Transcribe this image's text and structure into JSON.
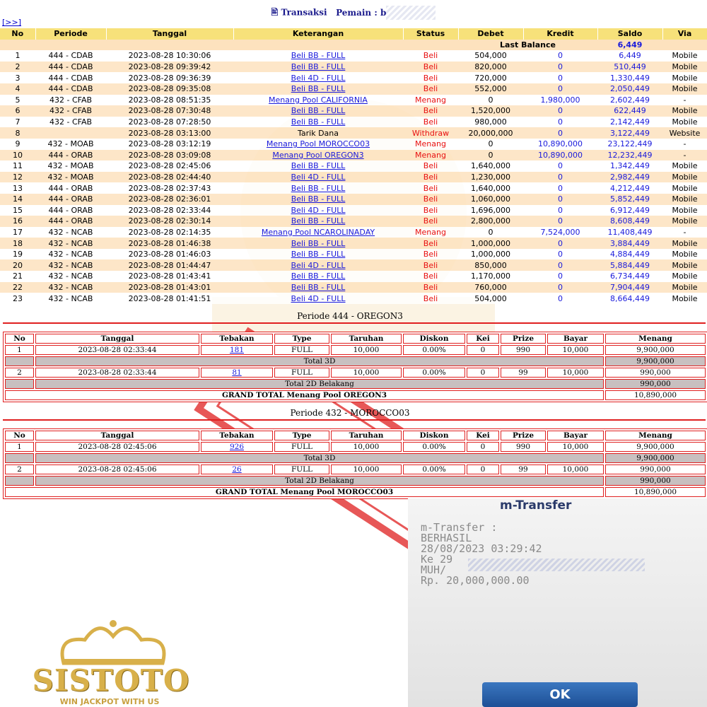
{
  "header": {
    "link": "[>>]",
    "title": "Transaksi",
    "player_label": "Pemain : b"
  },
  "transactions": {
    "columns": [
      "No",
      "Periode",
      "Tanggal",
      "Keterangan",
      "Status",
      "Debet",
      "Kredit",
      "Saldo",
      "Via"
    ],
    "last_balance_label": "Last Balance",
    "last_balance": "6,449",
    "rows": [
      [
        "1",
        "444 - CDAB",
        "2023-08-28 10:30:06",
        "Beli BB - FULL",
        "Beli",
        "504,000",
        "0",
        "6,449",
        "Mobile"
      ],
      [
        "2",
        "444 - CDAB",
        "2023-08-28 09:39:42",
        "Beli BB - FULL",
        "Beli",
        "820,000",
        "0",
        "510,449",
        "Mobile"
      ],
      [
        "3",
        "444 - CDAB",
        "2023-08-28 09:36:39",
        "Beli 4D - FULL",
        "Beli",
        "720,000",
        "0",
        "1,330,449",
        "Mobile"
      ],
      [
        "4",
        "444 - CDAB",
        "2023-08-28 09:35:08",
        "Beli BB - FULL",
        "Beli",
        "552,000",
        "0",
        "2,050,449",
        "Mobile"
      ],
      [
        "5",
        "432 - CFAB",
        "2023-08-28 08:51:35",
        "Menang Pool CALIFORNIA",
        "Menang",
        "0",
        "1,980,000",
        "2,602,449",
        "-"
      ],
      [
        "6",
        "432 - CFAB",
        "2023-08-28 07:30:48",
        "Beli BB - FULL",
        "Beli",
        "1,520,000",
        "0",
        "622,449",
        "Mobile"
      ],
      [
        "7",
        "432 - CFAB",
        "2023-08-28 07:28:50",
        "Beli BB - FULL",
        "Beli",
        "980,000",
        "0",
        "2,142,449",
        "Mobile"
      ],
      [
        "8",
        "",
        "2023-08-28 03:13:00",
        "Tarik Dana",
        "Withdraw",
        "20,000,000",
        "0",
        "3,122,449",
        "Website"
      ],
      [
        "9",
        "432 - MOAB",
        "2023-08-28 03:12:19",
        "Menang Pool MOROCCO03",
        "Menang",
        "0",
        "10,890,000",
        "23,122,449",
        "-"
      ],
      [
        "10",
        "444 - ORAB",
        "2023-08-28 03:09:08",
        "Menang Pool OREGON3",
        "Menang",
        "0",
        "10,890,000",
        "12,232,449",
        "-"
      ],
      [
        "11",
        "432 - MOAB",
        "2023-08-28 02:45:06",
        "Beli BB - FULL",
        "Beli",
        "1,640,000",
        "0",
        "1,342,449",
        "Mobile"
      ],
      [
        "12",
        "432 - MOAB",
        "2023-08-28 02:44:40",
        "Beli 4D - FULL",
        "Beli",
        "1,230,000",
        "0",
        "2,982,449",
        "Mobile"
      ],
      [
        "13",
        "444 - ORAB",
        "2023-08-28 02:37:43",
        "Beli BB - FULL",
        "Beli",
        "1,640,000",
        "0",
        "4,212,449",
        "Mobile"
      ],
      [
        "14",
        "444 - ORAB",
        "2023-08-28 02:36:01",
        "Beli BB - FULL",
        "Beli",
        "1,060,000",
        "0",
        "5,852,449",
        "Mobile"
      ],
      [
        "15",
        "444 - ORAB",
        "2023-08-28 02:33:44",
        "Beli 4D - FULL",
        "Beli",
        "1,696,000",
        "0",
        "6,912,449",
        "Mobile"
      ],
      [
        "16",
        "444 - ORAB",
        "2023-08-28 02:30:14",
        "Beli BB - FULL",
        "Beli",
        "2,800,000",
        "0",
        "8,608,449",
        "Mobile"
      ],
      [
        "17",
        "432 - NCAB",
        "2023-08-28 02:14:35",
        "Menang Pool NCAROLINADAY",
        "Menang",
        "0",
        "7,524,000",
        "11,408,449",
        "-"
      ],
      [
        "18",
        "432 - NCAB",
        "2023-08-28 01:46:38",
        "Beli BB - FULL",
        "Beli",
        "1,000,000",
        "0",
        "3,884,449",
        "Mobile"
      ],
      [
        "19",
        "432 - NCAB",
        "2023-08-28 01:46:03",
        "Beli BB - FULL",
        "Beli",
        "1,000,000",
        "0",
        "4,884,449",
        "Mobile"
      ],
      [
        "20",
        "432 - NCAB",
        "2023-08-28 01:44:47",
        "Beli 4D - FULL",
        "Beli",
        "850,000",
        "0",
        "5,884,449",
        "Mobile"
      ],
      [
        "21",
        "432 - NCAB",
        "2023-08-28 01:43:41",
        "Beli BB - FULL",
        "Beli",
        "1,170,000",
        "0",
        "6,734,449",
        "Mobile"
      ],
      [
        "22",
        "432 - NCAB",
        "2023-08-28 01:43:01",
        "Beli BB - FULL",
        "Beli",
        "760,000",
        "0",
        "7,904,449",
        "Mobile"
      ],
      [
        "23",
        "432 - NCAB",
        "2023-08-28 01:41:51",
        "Beli 4D - FULL",
        "Beli",
        "504,000",
        "0",
        "8,664,449",
        "Mobile"
      ]
    ]
  },
  "details": [
    {
      "title": "Periode 444 - OREGON3",
      "columns": [
        "No",
        "Tanggal",
        "Tebakan",
        "Type",
        "Taruhan",
        "Diskon",
        "Kei",
        "Prize",
        "Bayar",
        "Menang"
      ],
      "entries": [
        {
          "row": [
            "1",
            "2023-08-28 02:33:44",
            "181",
            "FULL",
            "10,000",
            "0.00%",
            "0",
            "990",
            "10,000",
            "9,900,000"
          ],
          "total_label": "Total 3D",
          "total": "9,900,000"
        },
        {
          "row": [
            "2",
            "2023-08-28 02:33:44",
            "81",
            "FULL",
            "10,000",
            "0.00%",
            "0",
            "99",
            "10,000",
            "990,000"
          ],
          "total_label": "Total 2D Belakang",
          "total": "990,000"
        }
      ],
      "grand_total_label": "GRAND TOTAL  Menang Pool OREGON3",
      "grand_total": "10,890,000"
    },
    {
      "title": "Periode 432 - MOROCCO03",
      "columns": [
        "No",
        "Tanggal",
        "Tebakan",
        "Type",
        "Taruhan",
        "Diskon",
        "Kei",
        "Prize",
        "Bayar",
        "Menang"
      ],
      "entries": [
        {
          "row": [
            "1",
            "2023-08-28 02:45:06",
            "926",
            "FULL",
            "10,000",
            "0.00%",
            "0",
            "990",
            "10,000",
            "9,900,000"
          ],
          "total_label": "Total 3D",
          "total": "9,900,000"
        },
        {
          "row": [
            "2",
            "2023-08-28 02:45:06",
            "26",
            "FULL",
            "10,000",
            "0.00%",
            "0",
            "99",
            "10,000",
            "990,000"
          ],
          "total_label": "Total 2D Belakang",
          "total": "990,000"
        }
      ],
      "grand_total_label": "GRAND TOTAL  Menang Pool MOROCCO03",
      "grand_total": "10,890,000"
    }
  ],
  "mtransfer": {
    "title": "m-Transfer",
    "lines": [
      "m-Transfer :",
      "BERHASIL",
      "28/08/2023 03:29:42",
      "Ke 29",
      "MUH/",
      "Rp. 20,000,000.00"
    ],
    "button": "OK"
  },
  "logo": {
    "name": "SISTOTO",
    "tagline": "WIN JACKPOT WITH US"
  }
}
